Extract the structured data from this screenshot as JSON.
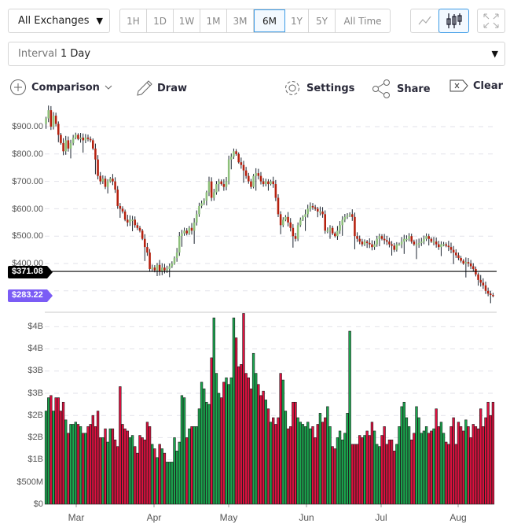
{
  "toolbar": {
    "exchange": "All Exchanges",
    "ranges": [
      "1H",
      "1D",
      "1W",
      "1M",
      "3M",
      "6M",
      "1Y",
      "5Y",
      "All Time"
    ],
    "active_range": "6M",
    "interval_label": "Interval",
    "interval_value": "1 Day",
    "comparison": "Comparison",
    "draw": "Draw",
    "settings": "Settings",
    "share": "Share",
    "clear": "Clear",
    "chart_mode": "candlestick"
  },
  "chart_data": {
    "type": "candlestick",
    "price_axis": {
      "ticks": [
        "$900.00",
        "$800.00",
        "$700.00",
        "$600.00",
        "$500.00",
        "$400.00"
      ],
      "values": [
        900,
        800,
        700,
        600,
        500,
        400
      ]
    },
    "volume_axis": {
      "ticks": [
        "$4B",
        "$4B",
        "$3B",
        "$3B",
        "$2B",
        "$2B",
        "$1B",
        "$500M",
        "$0"
      ],
      "values": [
        4,
        3.5,
        3,
        2.5,
        2,
        1.5,
        1,
        0.5,
        0
      ]
    },
    "x_ticks": [
      "Mar",
      "Apr",
      "May",
      "Jun",
      "Jul",
      "Aug"
    ],
    "reference_line": {
      "label": "$371.08",
      "value": 371.08
    },
    "current_price": {
      "label": "$283.22",
      "value": 283.22
    },
    "close": [
      930,
      960,
      900,
      940,
      910,
      870,
      840,
      810,
      850,
      820,
      840,
      860,
      870,
      855,
      860,
      850,
      860,
      855,
      850,
      820,
      780,
      720,
      700,
      710,
      680,
      700,
      710,
      700,
      670,
      610,
      600,
      590,
      560,
      550,
      560,
      560,
      540,
      530,
      520,
      490,
      460,
      440,
      380,
      385,
      375,
      395,
      370,
      385,
      375,
      380,
      390,
      400,
      420,
      440,
      500,
      510,
      520,
      510,
      530,
      520,
      550,
      580,
      610,
      620,
      630,
      660,
      700,
      640,
      660,
      690,
      700,
      690,
      680,
      700,
      780,
      790,
      810,
      800,
      770,
      760,
      740,
      720,
      700,
      680,
      720,
      730,
      720,
      700,
      690,
      700,
      690,
      700,
      690,
      640,
      580,
      540,
      560,
      570,
      550,
      530,
      500,
      490,
      540,
      560,
      570,
      580,
      600,
      610,
      605,
      600,
      590,
      590,
      580,
      520,
      520,
      530,
      510,
      500,
      520,
      540,
      560,
      570,
      575,
      580,
      570,
      500,
      490,
      480,
      470,
      480,
      475,
      470,
      460,
      470,
      490,
      500,
      490,
      485,
      480,
      470,
      465,
      450,
      470,
      470,
      480,
      490,
      490,
      500,
      480,
      470,
      470,
      475,
      480,
      490,
      500,
      490,
      480,
      480,
      470,
      460,
      470,
      470,
      465,
      460,
      450,
      440,
      430,
      420,
      410,
      400,
      405,
      400,
      390,
      380,
      360,
      340,
      330,
      320,
      300,
      290,
      285,
      283.22
    ],
    "volume_billions": [
      2.1,
      2.4,
      2.45,
      2.1,
      2.4,
      2.4,
      2.1,
      2.3,
      1.9,
      1.6,
      1.8,
      1.8,
      1.85,
      1.8,
      1.75,
      1.6,
      1.6,
      1.75,
      1.8,
      2.0,
      1.75,
      2.1,
      1.5,
      1.5,
      1.7,
      1.4,
      1.7,
      1.7,
      1.45,
      1.3,
      2.65,
      1.8,
      1.7,
      1.65,
      1.5,
      1.55,
      1.3,
      1.15,
      1.55,
      1.5,
      1.45,
      1.85,
      1.75,
      1.35,
      1.25,
      1.05,
      1.35,
      1.25,
      1.15,
      0.95,
      0.95,
      0.95,
      1.5,
      1.2,
      1.4,
      2.45,
      2.4,
      1.5,
      1.7,
      1.75,
      1.75,
      1.75,
      2.15,
      2.75,
      2.6,
      2.3,
      2.25,
      3.3,
      4.2,
      2.95,
      2.5,
      2.4,
      2.75,
      2.85,
      2.7,
      2.85,
      4.2,
      3.75,
      3.1,
      3.15,
      4.3,
      2.95,
      2.85,
      2.6,
      3.4,
      2.95,
      2.7,
      2.45,
      2.55,
      2.35,
      2.15,
      1.85,
      1.95,
      1.8,
      1.95,
      2.95,
      2.8,
      2.1,
      1.7,
      1.75,
      2.3,
      2.3,
      1.95,
      1.85,
      1.8,
      1.75,
      1.85,
      1.7,
      1.75,
      1.5,
      1.8,
      2.05,
      1.85,
      1.95,
      2.2,
      1.75,
      1.3,
      1.25,
      1.5,
      1.65,
      1.45,
      1.6,
      2.05,
      3.9,
      1.35,
      1.35,
      1.35,
      1.55,
      1.5,
      1.55,
      1.65,
      1.55,
      1.85,
      1.65,
      1.35,
      1.3,
      1.55,
      1.75,
      1.35,
      1.45,
      1.45,
      1.2,
      1.35,
      1.75,
      2.2,
      2.3,
      1.95,
      1.75,
      1.45,
      1.6,
      2.2,
      1.95,
      1.6,
      1.65,
      1.75,
      1.6,
      1.65,
      1.7,
      2.15,
      1.75,
      1.85,
      1.6,
      1.4,
      1.35,
      1.75,
      1.95,
      1.35,
      1.85,
      1.75,
      1.65,
      1.9,
      1.75,
      1.5,
      1.8,
      1.75,
      1.7,
      2.15,
      1.75,
      1.95,
      2.3,
      2.0,
      2.3
    ],
    "colors": {
      "up_candle": "#8dc07a",
      "down_candle": "#b5200e",
      "up_volume": "#1aa84f",
      "down_volume": "#e0103f",
      "reference": "#000000",
      "current": "#7b5cf5"
    },
    "grid": true
  }
}
